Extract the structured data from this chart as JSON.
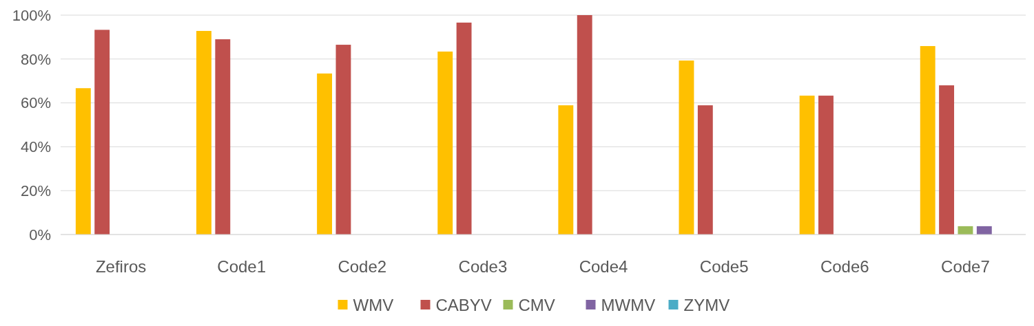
{
  "chart_data": {
    "type": "bar",
    "categories": [
      "Zefiros",
      "Code1",
      "Code2",
      "Code3",
      "Code4",
      "Code5",
      "Code6",
      "Code7"
    ],
    "series": [
      {
        "name": "WMV",
        "color": "#ffc000",
        "values": [
          66.7,
          92.8,
          73.4,
          83.4,
          58.9,
          79.3,
          63.3,
          85.9
        ]
      },
      {
        "name": "CABYV",
        "color": "#c0504d",
        "values": [
          93.3,
          89,
          86.5,
          96.6,
          100,
          58.9,
          63.3,
          68
        ]
      },
      {
        "name": "CMV",
        "color": "#9bbb59",
        "values": [
          0,
          0,
          0,
          0,
          0,
          0,
          0,
          3.8
        ]
      },
      {
        "name": "MWMV",
        "color": "#8064a2",
        "values": [
          0,
          0,
          0,
          0,
          0,
          0,
          0,
          3.8
        ]
      },
      {
        "name": "ZYMV",
        "color": "#4bacc6",
        "values": [
          0,
          0,
          0,
          0,
          0,
          0,
          0,
          0
        ]
      }
    ],
    "ylim": [
      0,
      100
    ],
    "yticks": [
      {
        "value": 0,
        "label": "0%"
      },
      {
        "value": 20,
        "label": "20%"
      },
      {
        "value": 40,
        "label": "40%"
      },
      {
        "value": 60,
        "label": "60%"
      },
      {
        "value": 80,
        "label": "80%"
      },
      {
        "value": 100,
        "label": "100%"
      }
    ],
    "grid": "y",
    "legend": "bottom"
  }
}
